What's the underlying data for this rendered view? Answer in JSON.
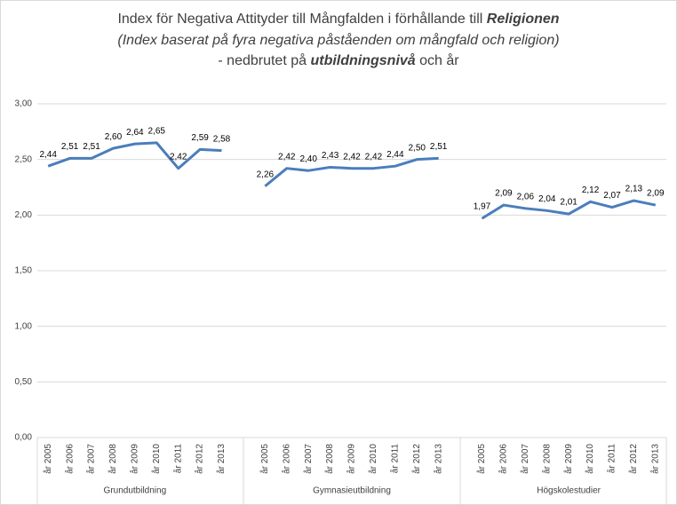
{
  "chart_data": {
    "type": "line",
    "title_lines": [
      [
        "Index för Negativa Attityder till Mångfalden i förhållande till ",
        "Religionen"
      ],
      [
        "(Index baserat på fyra negativa påståenden om mångfald och religion)"
      ],
      [
        "- nedbrutet på ",
        "utbildningsnivå",
        " och år"
      ]
    ],
    "color": "#4a7ebb",
    "grid": true,
    "ylim": [
      0,
      3
    ],
    "yticks": [
      {
        "value": 0,
        "label": "0,00"
      },
      {
        "value": 0.5,
        "label": "0,50"
      },
      {
        "value": 1,
        "label": "1,00"
      },
      {
        "value": 1.5,
        "label": "1,50"
      },
      {
        "value": 2,
        "label": "2,00"
      },
      {
        "value": 2.5,
        "label": "2,50"
      },
      {
        "value": 3,
        "label": "3,00"
      }
    ],
    "groups": [
      {
        "name": "Grundutbildning",
        "categories": [
          "år 2005",
          "år 2006",
          "år 2007",
          "år 2008",
          "år 2009",
          "år 2010",
          "år 2011",
          "år 2012",
          "år 2013"
        ],
        "values": [
          2.44,
          2.51,
          2.51,
          2.6,
          2.64,
          2.65,
          2.42,
          2.59,
          2.58
        ],
        "value_labels": [
          "2,44",
          "2,51",
          "2,51",
          "2,60",
          "2,64",
          "2,65",
          "2,42",
          "2,59",
          "2,58"
        ]
      },
      {
        "name": "Gymnasieutbildning",
        "categories": [
          "år 2005",
          "år 2006",
          "år 2007",
          "år 2008",
          "år 2009",
          "år 2010",
          "år 2011",
          "år 2012",
          "år 2013"
        ],
        "values": [
          2.26,
          2.42,
          2.4,
          2.43,
          2.42,
          2.42,
          2.44,
          2.5,
          2.51
        ],
        "value_labels": [
          "2,26",
          "2,42",
          "2,40",
          "2,43",
          "2,42",
          "2,42",
          "2,44",
          "2,50",
          "2,51"
        ]
      },
      {
        "name": "Högskolestudier",
        "categories": [
          "år 2005",
          "år 2006",
          "år 2007",
          "år 2008",
          "år 2009",
          "år 2010",
          "år 2011",
          "år 2012",
          "år 2013"
        ],
        "values": [
          1.97,
          2.09,
          2.06,
          2.04,
          2.01,
          2.12,
          2.07,
          2.13,
          2.09
        ],
        "value_labels": [
          "1,97",
          "2,09",
          "2,06",
          "2,04",
          "2,01",
          "2,12",
          "2,07",
          "2,13",
          "2,09"
        ]
      }
    ]
  }
}
